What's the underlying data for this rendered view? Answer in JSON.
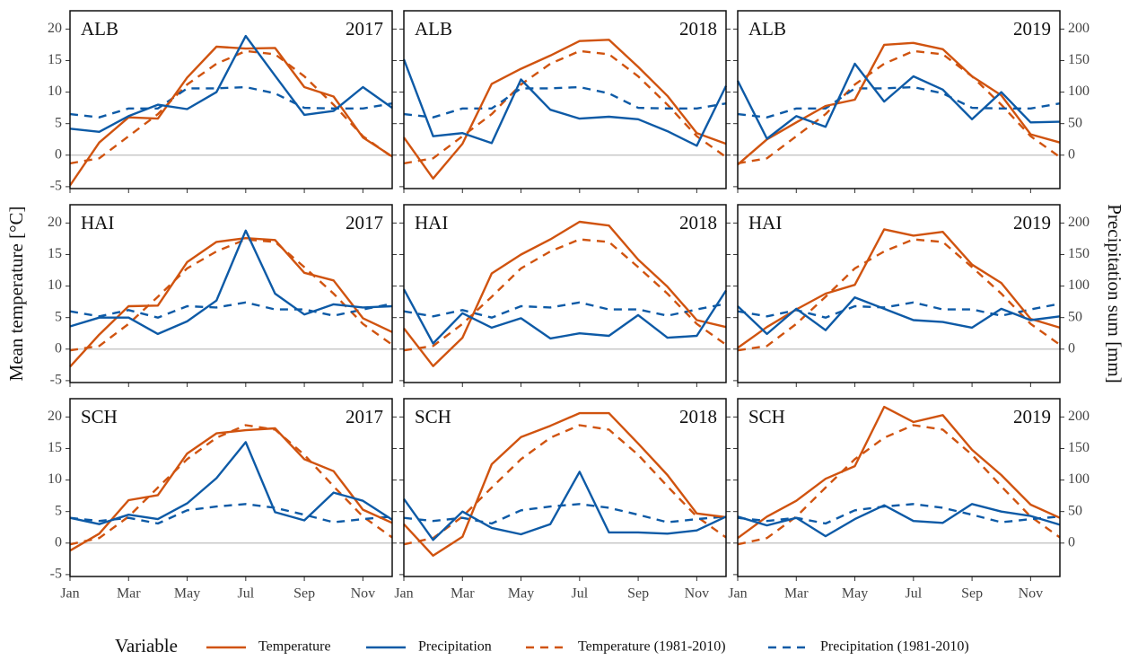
{
  "chart_data": {
    "type": "line",
    "ylabel": "Mean temperature [°C]",
    "y2label": "Precipitation sum [mm]",
    "legend_title": "Variable",
    "legend": "bottom",
    "zero_line": true,
    "x": [
      1,
      2,
      3,
      4,
      5,
      6,
      7,
      8,
      9,
      10,
      11,
      12
    ],
    "xlim": [
      1,
      12
    ],
    "xticks": [
      {
        "value": 1,
        "label": "Jan"
      },
      {
        "value": 3,
        "label": "Mar"
      },
      {
        "value": 5,
        "label": "May"
      },
      {
        "value": 7,
        "label": "Jul"
      },
      {
        "value": 9,
        "label": "Sep"
      },
      {
        "value": 11,
        "label": "Nov"
      }
    ],
    "ylim": [
      -5.3,
      22.9
    ],
    "yticks": [
      -5,
      0,
      5,
      10,
      15,
      20
    ],
    "y2lim": [
      -53,
      229
    ],
    "y2ticks": [
      0,
      50,
      100,
      150,
      200
    ],
    "series": [
      {
        "name": "Temperature",
        "color": "#d0530f",
        "dash": false,
        "axis": "y"
      },
      {
        "name": "Precipitation",
        "color": "#0d5aa6",
        "dash": false,
        "axis": "y2"
      },
      {
        "name": "Temperature (1981-2010)",
        "color": "#d0530f",
        "dash": true,
        "axis": "y"
      },
      {
        "name": "Precipitation (1981-2010)",
        "color": "#0d5aa6",
        "dash": true,
        "axis": "y2"
      }
    ],
    "panels": [
      {
        "site": "ALB",
        "year": "2017",
        "values": [
          [
            -4.8,
            2.0,
            6.0,
            5.8,
            12.3,
            17.2,
            16.9,
            17.0,
            10.8,
            9.3,
            2.8,
            -0.2
          ],
          [
            42,
            37,
            62,
            80,
            73,
            100,
            189,
            126,
            64,
            70,
            108,
            75
          ],
          [
            -1.3,
            -0.5,
            3.0,
            6.5,
            11.2,
            14.5,
            16.5,
            16.0,
            12.5,
            8.0,
            3.0,
            -0.3
          ],
          [
            65,
            60,
            74,
            74,
            106,
            106,
            108,
            98,
            75,
            74,
            74,
            82
          ]
        ]
      },
      {
        "site": "ALB",
        "year": "2018",
        "values": [
          [
            2.8,
            -3.7,
            1.8,
            11.3,
            13.7,
            15.8,
            18.1,
            18.3,
            14.0,
            9.4,
            3.5,
            1.8
          ],
          [
            152,
            30,
            35,
            19,
            120,
            72,
            58,
            61,
            57,
            38,
            15,
            110
          ],
          [
            -1.3,
            -0.5,
            3.0,
            6.5,
            11.2,
            14.5,
            16.5,
            16.0,
            12.5,
            8.0,
            3.0,
            -0.3
          ],
          [
            65,
            60,
            74,
            74,
            106,
            106,
            108,
            98,
            75,
            74,
            74,
            82
          ]
        ]
      },
      {
        "site": "ALB",
        "year": "2019",
        "values": [
          [
            -1.5,
            2.5,
            5.2,
            7.8,
            8.8,
            17.5,
            17.8,
            16.8,
            12.5,
            9.5,
            3.3,
            2.0
          ],
          [
            118,
            26,
            62,
            45,
            145,
            85,
            125,
            104,
            57,
            100,
            52,
            53
          ],
          [
            -1.3,
            -0.5,
            3.0,
            6.5,
            11.2,
            14.5,
            16.5,
            16.0,
            12.5,
            8.0,
            3.0,
            -0.3
          ],
          [
            65,
            60,
            74,
            74,
            106,
            106,
            108,
            98,
            75,
            74,
            74,
            82
          ]
        ]
      },
      {
        "site": "HAI",
        "year": "2017",
        "values": [
          [
            -2.8,
            2.3,
            6.8,
            6.9,
            13.8,
            17.0,
            17.6,
            17.3,
            12.1,
            10.9,
            4.9,
            2.7
          ],
          [
            36,
            50,
            50,
            24,
            44,
            77,
            188,
            88,
            55,
            71,
            66,
            68
          ],
          [
            -0.2,
            0.5,
            4.0,
            8.3,
            12.8,
            15.5,
            17.4,
            17.0,
            13.0,
            8.8,
            4.0,
            0.7
          ],
          [
            60,
            52,
            62,
            50,
            68,
            66,
            74,
            63,
            63,
            53,
            63,
            72
          ]
        ]
      },
      {
        "site": "HAI",
        "year": "2018",
        "values": [
          [
            3.3,
            -2.7,
            1.8,
            12.0,
            15.0,
            17.4,
            20.2,
            19.6,
            14.2,
            9.9,
            4.6,
            3.5
          ],
          [
            95,
            9,
            57,
            34,
            49,
            17,
            25,
            21,
            54,
            18,
            21,
            93
          ],
          [
            -0.2,
            0.5,
            4.0,
            8.3,
            12.8,
            15.5,
            17.4,
            17.0,
            13.0,
            8.8,
            4.0,
            0.7
          ],
          [
            60,
            52,
            62,
            50,
            68,
            66,
            74,
            63,
            63,
            53,
            63,
            72
          ]
        ]
      },
      {
        "site": "HAI",
        "year": "2019",
        "values": [
          [
            0.2,
            3.5,
            6.3,
            8.8,
            10.2,
            19.0,
            18.0,
            18.6,
            13.4,
            10.5,
            4.8,
            3.4
          ],
          [
            68,
            24,
            64,
            30,
            82,
            64,
            46,
            43,
            34,
            64,
            46,
            52
          ],
          [
            -0.2,
            0.5,
            4.0,
            8.3,
            12.8,
            15.5,
            17.4,
            17.0,
            13.0,
            8.8,
            4.0,
            0.7
          ],
          [
            60,
            52,
            62,
            50,
            68,
            66,
            74,
            63,
            63,
            53,
            63,
            72
          ]
        ]
      },
      {
        "site": "SCH",
        "year": "2017",
        "values": [
          [
            -1.2,
            1.5,
            6.8,
            7.6,
            14.2,
            17.4,
            17.9,
            18.2,
            13.3,
            11.4,
            5.3,
            3.2
          ],
          [
            40,
            30,
            45,
            38,
            63,
            103,
            160,
            49,
            36,
            80,
            67,
            37
          ],
          [
            -0.2,
            0.8,
            4.2,
            8.8,
            13.3,
            16.7,
            18.7,
            18.0,
            14.0,
            9.0,
            4.2,
            0.9
          ],
          [
            40,
            35,
            40,
            31,
            52,
            58,
            62,
            56,
            45,
            33,
            38,
            42
          ]
        ]
      },
      {
        "site": "SCH",
        "year": "2018",
        "values": [
          [
            3.0,
            -2.0,
            1.0,
            12.5,
            16.8,
            18.6,
            20.6,
            20.6,
            15.8,
            10.8,
            4.7,
            4.1
          ],
          [
            70,
            5,
            50,
            24,
            14,
            30,
            113,
            17,
            17,
            15,
            20,
            42
          ],
          [
            -0.2,
            0.8,
            4.2,
            8.8,
            13.3,
            16.7,
            18.7,
            18.0,
            14.0,
            9.0,
            4.2,
            0.9
          ],
          [
            40,
            35,
            40,
            31,
            52,
            58,
            62,
            56,
            45,
            33,
            38,
            42
          ]
        ]
      },
      {
        "site": "SCH",
        "year": "2019",
        "values": [
          [
            0.8,
            4.2,
            6.7,
            10.2,
            12.2,
            21.6,
            19.2,
            20.3,
            14.8,
            10.8,
            6.1,
            4.0
          ],
          [
            42,
            28,
            40,
            11,
            38,
            60,
            35,
            32,
            62,
            50,
            43,
            29
          ],
          [
            -0.2,
            0.8,
            4.2,
            8.8,
            13.3,
            16.7,
            18.7,
            18.0,
            14.0,
            9.0,
            4.2,
            0.9
          ],
          [
            40,
            35,
            40,
            31,
            52,
            58,
            62,
            56,
            45,
            33,
            38,
            42
          ]
        ]
      }
    ]
  }
}
